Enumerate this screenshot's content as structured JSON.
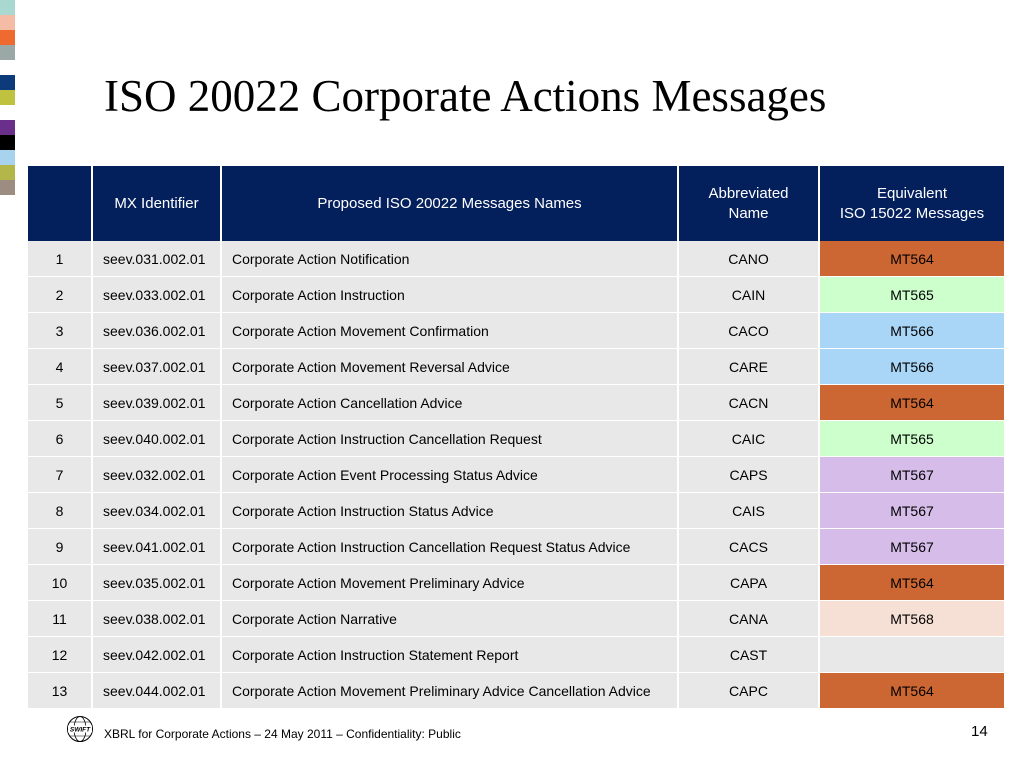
{
  "title": "ISO 20022 Corporate Actions Messages",
  "strip_colors": [
    "#a8d8cf",
    "#f4bca4",
    "#ef6a2e",
    "#9aa9a6",
    "#ffffff",
    "#0d3a7a",
    "#bfc23e",
    "#ffffff",
    "#6a2f8a",
    "#000000",
    "#a7d3ef",
    "#b3b74a",
    "#9c8c82"
  ],
  "table": {
    "headers": {
      "num": "",
      "mx": "MX Identifier",
      "name": "Proposed ISO 20022 Messages Names",
      "abbr_line1": "Abbreviated",
      "abbr_line2": "Name",
      "equiv_line1": "Equivalent",
      "equiv_line2": "ISO 15022 Messages"
    },
    "rows": [
      {
        "num": "1",
        "mx": "seev.031.002.01",
        "name": "Corporate Action Notification",
        "abbr": "CANO",
        "equiv": "MT564",
        "color": "#cc6633"
      },
      {
        "num": "2",
        "mx": "seev.033.002.01",
        "name": "Corporate Action Instruction",
        "abbr": "CAIN",
        "equiv": "MT565",
        "color": "#ccffcc"
      },
      {
        "num": "3",
        "mx": "seev.036.002.01",
        "name": "Corporate Action Movement Confirmation",
        "abbr": "CACO",
        "equiv": "MT566",
        "color": "#a9d6f7"
      },
      {
        "num": "4",
        "mx": "seev.037.002.01",
        "name": "Corporate Action Movement Reversal Advice",
        "abbr": "CARE",
        "equiv": "MT566",
        "color": "#a9d6f7"
      },
      {
        "num": "5",
        "mx": "seev.039.002.01",
        "name": "Corporate Action Cancellation Advice",
        "abbr": "CACN",
        "equiv": "MT564",
        "color": "#cc6633"
      },
      {
        "num": "6",
        "mx": "seev.040.002.01",
        "name": "Corporate Action Instruction Cancellation Request",
        "abbr": "CAIC",
        "equiv": "MT565",
        "color": "#ccffcc"
      },
      {
        "num": "7",
        "mx": "seev.032.002.01",
        "name": "Corporate Action Event Processing Status Advice",
        "abbr": "CAPS",
        "equiv": "MT567",
        "color": "#d6bde9"
      },
      {
        "num": "8",
        "mx": "seev.034.002.01",
        "name": "Corporate Action Instruction Status Advice",
        "abbr": "CAIS",
        "equiv": "MT567",
        "color": "#d6bde9"
      },
      {
        "num": "9",
        "mx": "seev.041.002.01",
        "name": "Corporate Action Instruction Cancellation Request Status Advice",
        "abbr": "CACS",
        "equiv": "MT567",
        "color": "#d6bde9"
      },
      {
        "num": "10",
        "mx": "seev.035.002.01",
        "name": "Corporate Action Movement Preliminary Advice",
        "abbr": "CAPA",
        "equiv": "MT564",
        "color": "#cc6633"
      },
      {
        "num": "11",
        "mx": "seev.038.002.01",
        "name": "Corporate Action Narrative",
        "abbr": "CANA",
        "equiv": "MT568",
        "color": "#f6e0d6"
      },
      {
        "num": "12",
        "mx": "seev.042.002.01",
        "name": "Corporate Action Instruction Statement Report",
        "abbr": "CAST",
        "equiv": "",
        "color": "#e8e8e8"
      },
      {
        "num": "13",
        "mx": "seev.044.002.01",
        "name": "Corporate Action Movement Preliminary Advice Cancellation Advice",
        "abbr": "CAPC",
        "equiv": "MT564",
        "color": "#cc6633"
      }
    ]
  },
  "footer": {
    "logo_text": "SWIFT",
    "text": "XBRL for Corporate Actions –  24 May 2011 – Confidentiality: Public",
    "page_number": "14"
  }
}
